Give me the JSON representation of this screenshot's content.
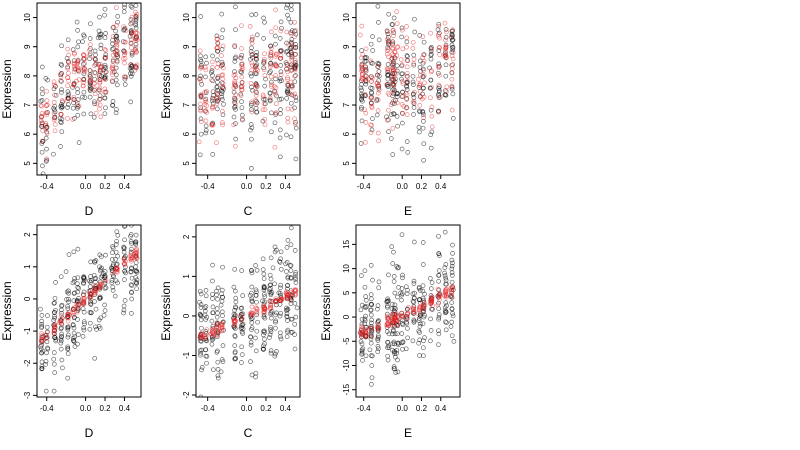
{
  "chart_data": [
    {
      "type": "scatter",
      "row": 0,
      "col": 0,
      "xlabel": "D",
      "ylabel": "Expression",
      "xlim": [
        -0.5,
        0.57
      ],
      "ylim": [
        4.6,
        10.5
      ],
      "xticks": [
        -0.4,
        0.0,
        0.2,
        0.4
      ],
      "xtick_labels": [
        "-0.4",
        "0.0",
        "0.2",
        "0.4"
      ],
      "yticks": [
        5,
        6,
        7,
        8,
        9,
        10
      ],
      "ytick_labels": [
        "5",
        "6",
        "7",
        "8",
        "9",
        "10"
      ],
      "x_groups": [
        -0.45,
        -0.4,
        -0.32,
        -0.25,
        -0.18,
        -0.12,
        -0.08,
        -0.02,
        0.05,
        0.1,
        0.15,
        0.2,
        0.28,
        0.32,
        0.4,
        0.47,
        0.52
      ],
      "series": [
        {
          "color": "#000000",
          "trend": [
            [
              -0.45,
              6.2
            ],
            [
              -0.3,
              7.0
            ],
            [
              -0.1,
              8.0
            ],
            [
              0.1,
              8.1
            ],
            [
              0.3,
              8.6
            ],
            [
              0.5,
              9.1
            ]
          ],
          "spread": 0.9,
          "n": 260
        },
        {
          "color": "#e41a1c",
          "trend": [
            [
              -0.45,
              6.3
            ],
            [
              -0.3,
              7.2
            ],
            [
              -0.1,
              8.2
            ],
            [
              0.05,
              8.0
            ],
            [
              0.1,
              7.6
            ],
            [
              0.3,
              8.8
            ],
            [
              0.5,
              9.3
            ]
          ],
          "spread": 0.6,
          "n": 200
        }
      ]
    },
    {
      "type": "scatter",
      "row": 0,
      "col": 1,
      "xlabel": "C",
      "ylabel": "Expression",
      "xlim": [
        -0.52,
        0.55
      ],
      "ylim": [
        4.6,
        10.5
      ],
      "xticks": [
        -0.4,
        0.0,
        0.2,
        0.4
      ],
      "xtick_labels": [
        "-0.4",
        "0.0",
        "0.2",
        "0.4"
      ],
      "yticks": [
        5,
        6,
        7,
        8,
        9,
        10
      ],
      "ytick_labels": [
        "5",
        "6",
        "7",
        "8",
        "9",
        "10"
      ],
      "x_groups": [
        -0.47,
        -0.42,
        -0.35,
        -0.3,
        -0.25,
        -0.12,
        -0.05,
        0.05,
        0.1,
        0.18,
        0.25,
        0.3,
        0.35,
        0.42,
        0.46,
        0.5
      ],
      "series": [
        {
          "color": "#000000",
          "trend": [
            [
              -0.5,
              7.4
            ],
            [
              -0.2,
              7.8
            ],
            [
              0.1,
              8.0
            ],
            [
              0.5,
              8.4
            ]
          ],
          "spread": 1.1,
          "n": 260
        },
        {
          "color": "#e41a1c",
          "trend": [
            [
              -0.5,
              7.3
            ],
            [
              -0.25,
              7.5
            ],
            [
              0.0,
              7.8
            ],
            [
              0.3,
              8.1
            ],
            [
              0.5,
              8.5
            ]
          ],
          "spread": 0.9,
          "n": 200
        }
      ]
    },
    {
      "type": "scatter",
      "row": 0,
      "col": 2,
      "xlabel": "E",
      "ylabel": "Expression",
      "xlim": [
        -0.48,
        0.6
      ],
      "ylim": [
        4.6,
        10.5
      ],
      "xticks": [
        -0.4,
        0.0,
        0.2,
        0.4
      ],
      "xtick_labels": [
        "-0.4",
        "0.0",
        "0.2",
        "0.4"
      ],
      "yticks": [
        5,
        6,
        7,
        8,
        9,
        10
      ],
      "ytick_labels": [
        "5",
        "6",
        "7",
        "8",
        "9",
        "10"
      ],
      "x_groups": [
        -0.42,
        -0.38,
        -0.32,
        -0.25,
        -0.15,
        -0.1,
        -0.08,
        -0.05,
        0.0,
        0.05,
        0.12,
        0.18,
        0.22,
        0.3,
        0.38,
        0.45,
        0.52
      ],
      "series": [
        {
          "color": "#000000",
          "trend": [
            [
              -0.45,
              7.6
            ],
            [
              -0.1,
              7.9
            ],
            [
              0.2,
              7.5
            ],
            [
              0.55,
              8.7
            ]
          ],
          "spread": 1.0,
          "n": 260
        },
        {
          "color": "#e41a1c",
          "trend": [
            [
              -0.45,
              8.2
            ],
            [
              -0.3,
              7.4
            ],
            [
              -0.1,
              8.3
            ],
            [
              0.2,
              7.6
            ],
            [
              0.55,
              8.9
            ]
          ],
          "spread": 0.8,
          "n": 200
        }
      ]
    },
    {
      "type": "scatter",
      "row": 1,
      "col": 0,
      "xlabel": "D",
      "ylabel": "Expression",
      "xlim": [
        -0.5,
        0.57
      ],
      "ylim": [
        -3.05,
        2.3
      ],
      "xticks": [
        -0.4,
        0.0,
        0.2,
        0.4
      ],
      "xtick_labels": [
        "-0.4",
        "0.0",
        "0.2",
        "0.4"
      ],
      "yticks": [
        -3,
        -2,
        -1,
        0,
        1,
        2
      ],
      "ytick_labels": [
        "-3",
        "-2",
        "-1",
        "0",
        "1",
        "2"
      ],
      "x_groups": [
        -0.45,
        -0.4,
        -0.32,
        -0.25,
        -0.18,
        -0.12,
        -0.08,
        -0.02,
        0.05,
        0.1,
        0.15,
        0.2,
        0.28,
        0.32,
        0.4,
        0.47,
        0.52
      ],
      "series": [
        {
          "color": "#000000",
          "trend": [
            [
              -0.45,
              -1.4
            ],
            [
              0.0,
              0.0
            ],
            [
              0.5,
              1.4
            ]
          ],
          "spread": 0.7,
          "n": 320
        },
        {
          "color": "#e41a1c",
          "trend": [
            [
              -0.45,
              -1.3
            ],
            [
              0.0,
              0.0
            ],
            [
              0.5,
              1.4
            ]
          ],
          "spread": 0.08,
          "n": 120
        }
      ]
    },
    {
      "type": "scatter",
      "row": 1,
      "col": 1,
      "xlabel": "C",
      "ylabel": "Expression",
      "xlim": [
        -0.52,
        0.55
      ],
      "ylim": [
        -2.05,
        2.3
      ],
      "xticks": [
        -0.4,
        0.0,
        0.2,
        0.4
      ],
      "xtick_labels": [
        "-0.4",
        "0.0",
        "0.2",
        "0.4"
      ],
      "yticks": [
        -2,
        -1,
        0,
        1,
        2
      ],
      "ytick_labels": [
        "-2",
        "-1",
        "0",
        "1",
        "2"
      ],
      "x_groups": [
        -0.47,
        -0.42,
        -0.35,
        -0.3,
        -0.25,
        -0.12,
        -0.05,
        0.05,
        0.1,
        0.18,
        0.25,
        0.3,
        0.35,
        0.42,
        0.46,
        0.5
      ],
      "series": [
        {
          "color": "#000000",
          "trend": [
            [
              -0.5,
              -0.5
            ],
            [
              0.0,
              0.0
            ],
            [
              0.5,
              0.6
            ]
          ],
          "spread": 0.7,
          "n": 320
        },
        {
          "color": "#e41a1c",
          "trend": [
            [
              -0.5,
              -0.55
            ],
            [
              0.0,
              0.0
            ],
            [
              0.5,
              0.6
            ]
          ],
          "spread": 0.06,
          "n": 120
        }
      ]
    },
    {
      "type": "scatter",
      "row": 1,
      "col": 2,
      "xlabel": "E",
      "ylabel": "Expression",
      "xlim": [
        -0.48,
        0.6
      ],
      "ylim": [
        -16.5,
        19.0
      ],
      "xticks": [
        -0.4,
        0.0,
        0.2,
        0.4
      ],
      "xtick_labels": [
        "-0.4",
        "0.0",
        "0.2",
        "0.4"
      ],
      "yticks": [
        -15,
        -10,
        -5,
        0,
        5,
        10,
        15
      ],
      "ytick_labels": [
        "-15",
        "-10",
        "-5",
        "0",
        "5",
        "10",
        "15"
      ],
      "x_groups": [
        -0.42,
        -0.38,
        -0.32,
        -0.25,
        -0.15,
        -0.1,
        -0.08,
        -0.05,
        0.0,
        0.05,
        0.12,
        0.18,
        0.22,
        0.3,
        0.38,
        0.45,
        0.52
      ],
      "series": [
        {
          "color": "#000000",
          "trend": [
            [
              -0.45,
              -3.0
            ],
            [
              0.0,
              0.5
            ],
            [
              0.55,
              5.5
            ]
          ],
          "spread": 5.0,
          "n": 320
        },
        {
          "color": "#e41a1c",
          "trend": [
            [
              -0.45,
              -3.5
            ],
            [
              0.0,
              0.0
            ],
            [
              0.55,
              6.0
            ]
          ],
          "spread": 0.6,
          "n": 140
        }
      ]
    }
  ]
}
